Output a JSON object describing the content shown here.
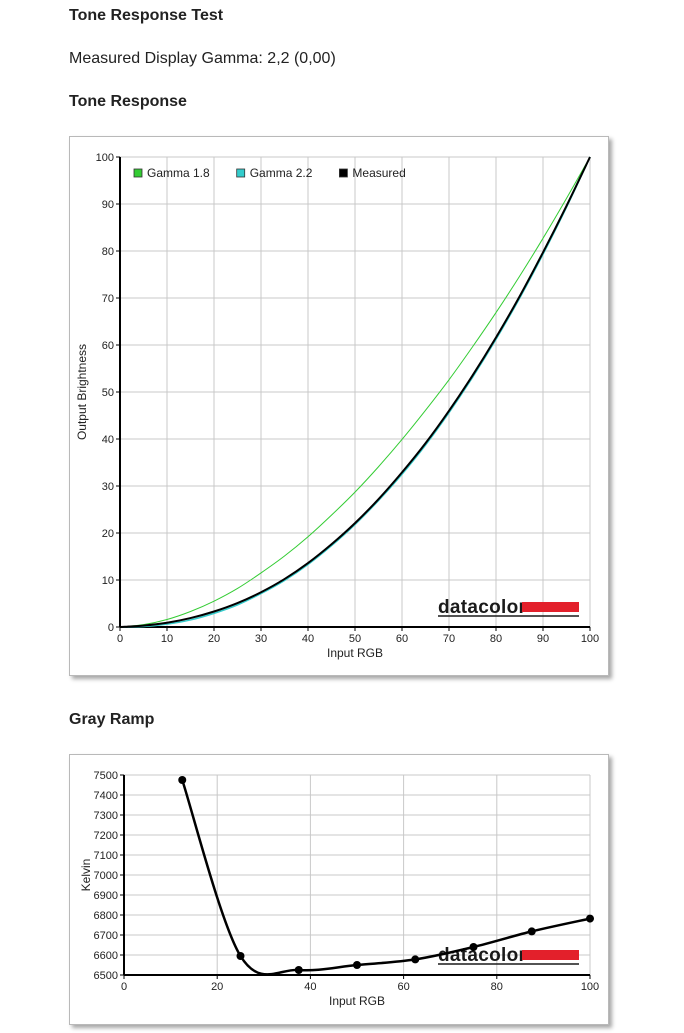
{
  "page": {
    "title": "Tone Response Test",
    "gamma_line": "Measured Display Gamma: 2,2 (0,00)",
    "section_tone": "Tone Response",
    "section_gray": "Gray Ramp"
  },
  "brand": {
    "name": "datacolor",
    "accent": "#e3202b"
  },
  "chart_data": [
    {
      "type": "line",
      "xlabel": "Input RGB",
      "ylabel": "Output Brightness",
      "xlim": [
        0,
        100
      ],
      "ylim": [
        0,
        100
      ],
      "xticks": [
        0,
        10,
        20,
        30,
        40,
        50,
        60,
        70,
        80,
        90,
        100
      ],
      "yticks": [
        0,
        10,
        20,
        30,
        40,
        50,
        60,
        70,
        80,
        90,
        100
      ],
      "grid": true,
      "legend_position": "top-left",
      "series": [
        {
          "name": "Gamma 1.8",
          "color": "#33cc33",
          "width": 1,
          "x": [
            0,
            5,
            10,
            15,
            20,
            25,
            30,
            35,
            40,
            45,
            50,
            55,
            60,
            65,
            70,
            75,
            80,
            85,
            90,
            95,
            100
          ],
          "y": [
            0,
            0.5,
            1.6,
            3.3,
            5.5,
            8.2,
            11.5,
            15.1,
            19.2,
            23.8,
            28.7,
            34.1,
            39.9,
            46.1,
            52.6,
            59.6,
            66.9,
            74.6,
            82.7,
            91.2,
            100
          ]
        },
        {
          "name": "Gamma 2.2",
          "color": "#33cccc",
          "width": 1.5,
          "x": [
            0,
            5,
            10,
            15,
            20,
            25,
            30,
            35,
            40,
            45,
            50,
            55,
            60,
            65,
            70,
            75,
            80,
            85,
            90,
            95,
            100
          ],
          "y": [
            0,
            0.1,
            0.6,
            1.5,
            2.9,
            4.7,
            7.1,
            9.9,
            13.3,
            17.3,
            21.8,
            26.9,
            32.5,
            38.7,
            45.6,
            53.1,
            61.2,
            69.9,
            79.3,
            89.3,
            100
          ]
        },
        {
          "name": "Measured",
          "color": "#000000",
          "width": 2,
          "x": [
            0,
            5,
            10,
            15,
            20,
            25,
            30,
            35,
            40,
            45,
            50,
            55,
            60,
            65,
            70,
            75,
            80,
            85,
            90,
            95,
            100
          ],
          "y": [
            0,
            0.3,
            0.9,
            1.9,
            3.3,
            5.1,
            7.4,
            10.2,
            13.6,
            17.6,
            22.1,
            27.2,
            32.9,
            39.1,
            46.0,
            53.5,
            61.6,
            70.3,
            79.7,
            89.6,
            100
          ]
        }
      ]
    },
    {
      "type": "line",
      "xlabel": "Input RGB",
      "ylabel": "Kelvin",
      "xlim": [
        0,
        100
      ],
      "ylim": [
        6500,
        7500
      ],
      "xticks": [
        0,
        20,
        40,
        60,
        80,
        100
      ],
      "yticks": [
        6500,
        6600,
        6700,
        6800,
        6900,
        7000,
        7100,
        7200,
        7300,
        7400,
        7500
      ],
      "grid": true,
      "series": [
        {
          "name": "",
          "color": "#000000",
          "width": 2.5,
          "markers": true,
          "x": [
            12.5,
            25,
            37.5,
            50,
            62.5,
            75,
            87.5,
            100
          ],
          "y": [
            7475,
            6595,
            6525,
            6550,
            6578,
            6640,
            6718,
            6782
          ]
        }
      ]
    }
  ]
}
